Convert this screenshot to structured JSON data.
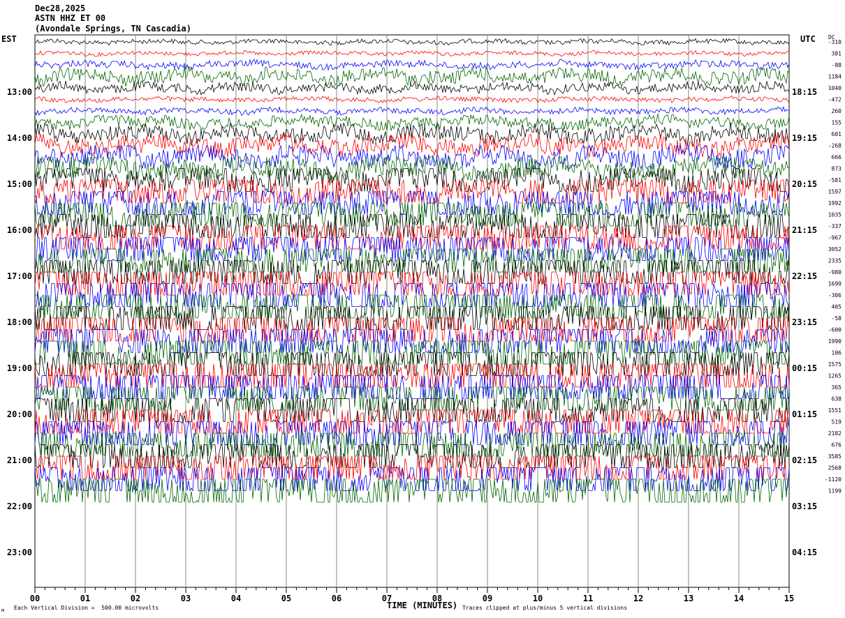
{
  "header": {
    "date": "Dec28,2025",
    "channel": "ASTN HHZ ET 00",
    "location": "(Avondale Springs, TN Cascadia)"
  },
  "labels": {
    "left_zone": "EST",
    "right_zone": "UTC",
    "dc_header": "DC",
    "xlabel": "TIME (MINUTES)",
    "scale_note": "Each Vertical Division =  500.00 microvolts",
    "clip_note": "Traces clipped at plus/minus 5 vertical divisions",
    "corner_mark": "m"
  },
  "chart_data": {
    "type": "line",
    "title": "Dec28,2025 ASTN HHZ ET 00 (Avondale Springs, TN Cascadia)",
    "xlabel": "TIME (MINUTES)",
    "x_ticks": [
      "00",
      "01",
      "02",
      "03",
      "04",
      "05",
      "06",
      "07",
      "08",
      "09",
      "10",
      "11",
      "12",
      "13",
      "14",
      "15"
    ],
    "xlim": [
      0,
      15
    ],
    "left_time_labels": [
      "13:00",
      "14:00",
      "15:00",
      "16:00",
      "17:00",
      "18:00",
      "19:00",
      "20:00",
      "21:00",
      "22:00",
      "23:00"
    ],
    "right_time_labels": [
      "18:15",
      "19:15",
      "20:15",
      "21:15",
      "22:15",
      "23:15",
      "00:15",
      "01:15",
      "02:15",
      "03:15",
      "04:15"
    ],
    "start_hour_offset_rows": 1,
    "rows_per_hour": 4,
    "trace_colors": [
      "#000000",
      "#ff0000",
      "#0000ff",
      "#006400"
    ],
    "dc_offsets": [
      "-310",
      "381",
      "-88",
      "1184",
      "1040",
      "-472",
      "260",
      "155",
      "601",
      "-268",
      "666",
      "873",
      "-581",
      "1597",
      "1992",
      "1035",
      "-337",
      "-967",
      "3052",
      "2335",
      "-980",
      "1699",
      "-306",
      "405",
      "-58",
      "-600",
      "1990",
      "106",
      "1575",
      "1265",
      "365",
      "638",
      "1551",
      "519",
      "2182",
      "676",
      "3585",
      "2568",
      "-1120",
      "1199"
    ],
    "trace_amplitude_divisions": [
      0.4,
      0.35,
      0.6,
      1.2,
      0.8,
      0.4,
      0.5,
      1.0,
      1.4,
      1.6,
      1.8,
      2.0,
      2.6,
      3.0,
      3.4,
      3.6,
      3.6,
      3.8,
      4.2,
      4.4,
      4.6,
      4.6,
      4.8,
      4.8,
      5,
      5,
      5,
      5,
      5,
      5,
      5,
      5,
      5,
      5,
      5,
      5,
      5,
      5,
      5,
      5
    ],
    "clip_divisions": 5,
    "units": "microvolts",
    "division_value": 500.0
  }
}
